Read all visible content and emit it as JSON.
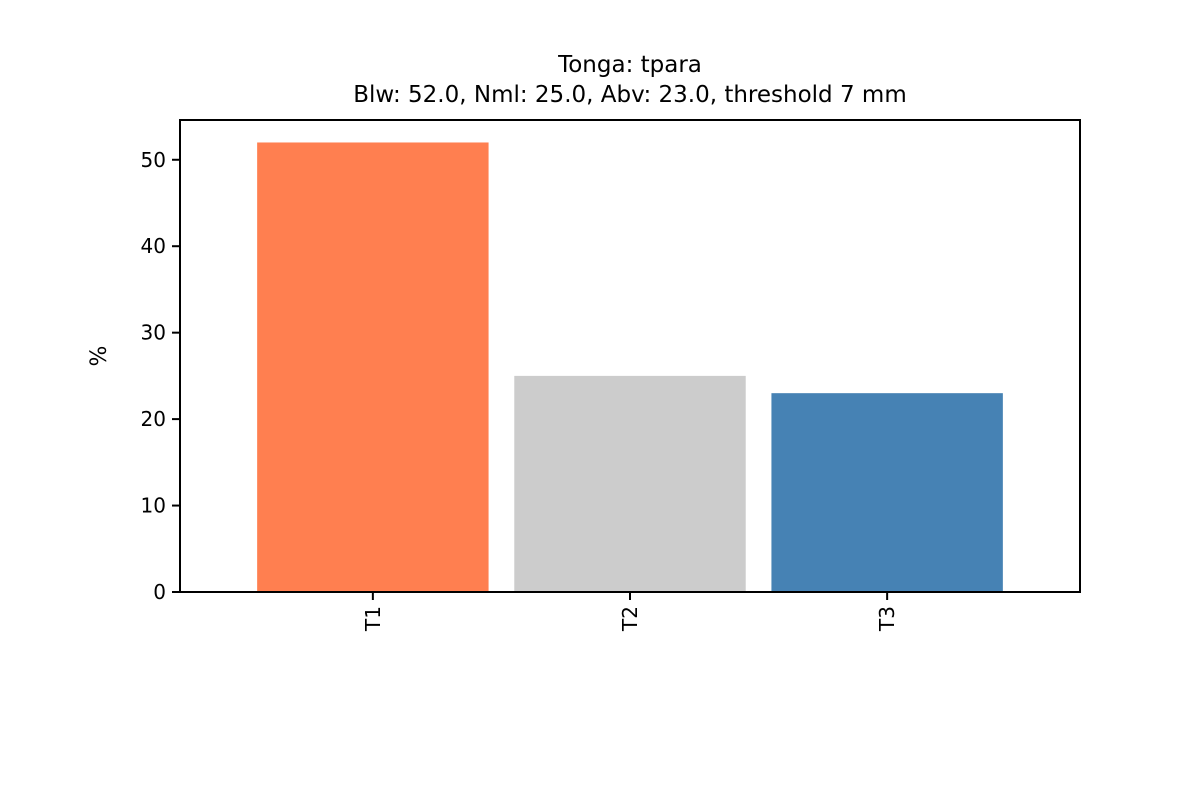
{
  "chart_data": {
    "type": "bar",
    "title": "Tonga: tpara",
    "subtitle": "Blw: 52.0, Nml: 25.0, Abv: 23.0, threshold 7 mm",
    "xlabel": "",
    "ylabel": "%",
    "categories": [
      "T1",
      "T2",
      "T3"
    ],
    "values": [
      52.0,
      25.0,
      23.0
    ],
    "colors": [
      "#ff7f50",
      "#cccccc",
      "#4682b4"
    ],
    "ylim": [
      0,
      54.6
    ],
    "yticks": [
      0,
      10,
      20,
      30,
      40,
      50
    ],
    "grid": false,
    "legend": "none"
  }
}
